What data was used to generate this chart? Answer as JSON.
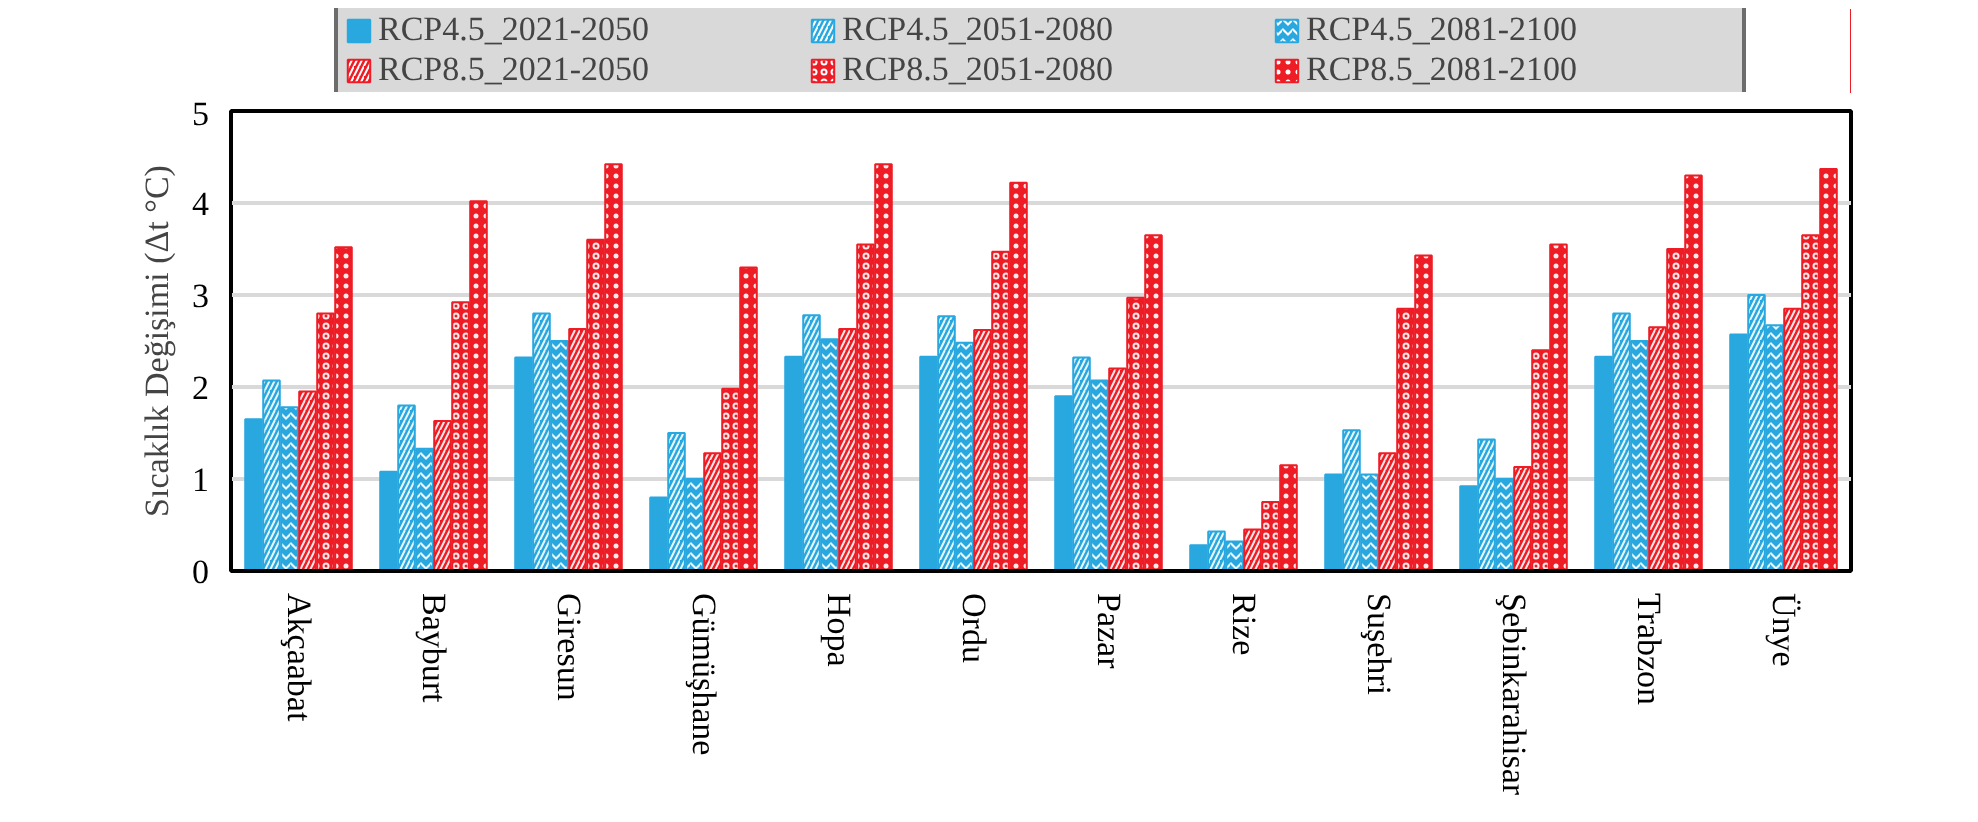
{
  "chart_data": {
    "type": "bar",
    "ylabel": "Sıcaklık Değişimi (Δt °C)",
    "categories": [
      "Akçaabat",
      "Bayburt",
      "Giresun",
      "Gümüşhane",
      "Hopa",
      "Ordu",
      "Pazar",
      "Rize",
      "Suşehri",
      "Şebinkarahisar",
      "Trabzon",
      "Ünye"
    ],
    "series": [
      {
        "name": "RCP4.5_2021-2050",
        "color": "#29a8e0",
        "values": [
          1.65,
          1.08,
          2.32,
          0.8,
          2.33,
          2.33,
          1.9,
          0.28,
          1.05,
          0.92,
          2.33,
          2.57
        ]
      },
      {
        "name": "RCP4.5_2051-2080",
        "color": "#29a8e0",
        "values": [
          2.07,
          1.8,
          2.8,
          1.5,
          2.78,
          2.77,
          2.32,
          0.43,
          1.53,
          1.43,
          2.8,
          3.0
        ]
      },
      {
        "name": "RCP4.5_2081-2100",
        "color": "#29a8e0",
        "values": [
          1.78,
          1.33,
          2.5,
          1.0,
          2.52,
          2.48,
          2.07,
          0.32,
          1.05,
          1.0,
          2.5,
          2.67
        ]
      },
      {
        "name": "RCP8.5_2021-2050",
        "color": "#ee1c25",
        "values": [
          1.95,
          1.63,
          2.63,
          1.28,
          2.63,
          2.62,
          2.2,
          0.45,
          1.28,
          1.13,
          2.65,
          2.85
        ]
      },
      {
        "name": "RCP8.5_2051-2080",
        "color": "#ee1c25",
        "values": [
          2.8,
          2.92,
          3.6,
          1.98,
          3.55,
          3.47,
          2.97,
          0.75,
          2.85,
          2.4,
          3.5,
          3.65
        ]
      },
      {
        "name": "RCP8.5_2081-2100",
        "color": "#ee1c25",
        "values": [
          3.52,
          4.02,
          4.42,
          3.3,
          4.42,
          4.22,
          3.65,
          1.15,
          3.43,
          3.55,
          4.3,
          4.37
        ]
      }
    ],
    "ylim": [
      0,
      5
    ],
    "yticks": [
      0,
      1,
      2,
      3,
      4,
      5
    ],
    "grid": "y",
    "legend": "top"
  }
}
